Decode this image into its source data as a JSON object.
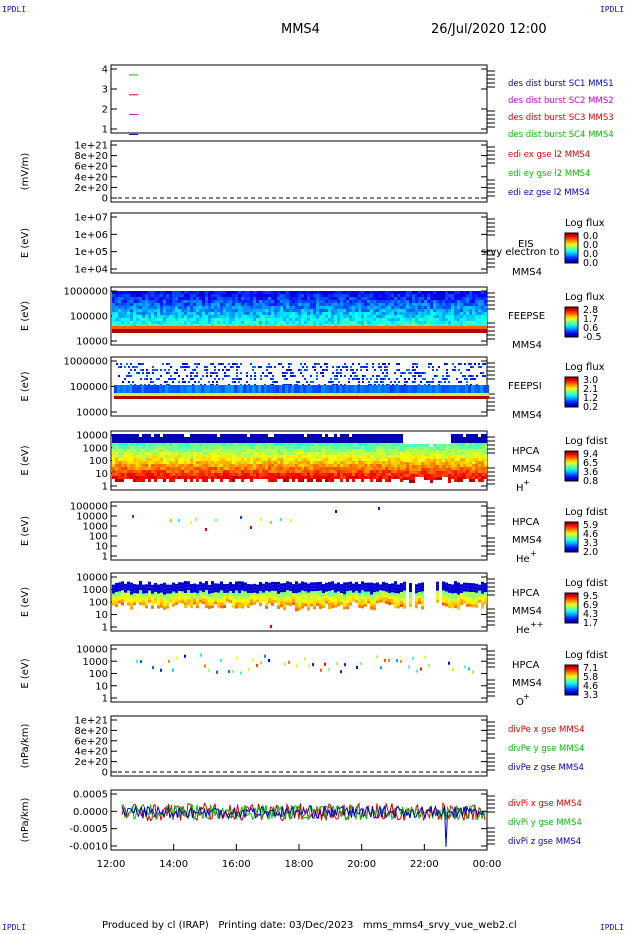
{
  "corners": {
    "tl": "IPDLI",
    "tr": "IPDLI",
    "bl": "IPDLI",
    "br": "IPDLI"
  },
  "header": {
    "spacecraft": "MMS4",
    "datetime": "26/Jul/2020 12:00"
  },
  "footer": {
    "text": "Produced by cl (IRAP)   Printing date: 03/Dec/2023   mms_mms4_srvy_vue_web2.cl"
  },
  "time_axis": {
    "ticks": [
      "12:00",
      "14:00",
      "16:00",
      "18:00",
      "20:00",
      "22:00",
      "00:00"
    ],
    "range_hours": [
      12,
      24
    ]
  },
  "colors": {
    "red": "#e00000",
    "green": "#00c000",
    "magenta": "#d000d0",
    "blue": "#0000c0",
    "black": "#000000"
  },
  "chart_data": [
    {
      "id": "burst",
      "type": "line",
      "ylabel": "",
      "yticks": [
        "4",
        "3",
        "2",
        "1"
      ],
      "legend": [
        {
          "text": "des dist burst SC1 MMS1",
          "color": "#0000c0"
        },
        {
          "text": "des dist burst SC2 MMS2",
          "color": "#d000d0"
        },
        {
          "text": "des dist burst SC3 MMS3",
          "color": "#e00000"
        },
        {
          "text": "des dist burst SC4 MMS4",
          "color": "#00c000"
        }
      ]
    },
    {
      "id": "edi",
      "type": "line",
      "ylabel": "(mV/m)",
      "yticks": [
        "1e+21",
        "8e+20",
        "6e+20",
        "4e+20",
        "2e+20",
        "0"
      ],
      "legend": [
        {
          "text": "edi ex gse l2 MMS4",
          "color": "#e00000"
        },
        {
          "text": "edi ey gse l2 MMS4",
          "color": "#00c000"
        },
        {
          "text": "edi ez gse l2 MMS4",
          "color": "#0000c0"
        }
      ]
    },
    {
      "id": "eis",
      "type": "heatmap",
      "ylabel": "E (eV)",
      "yticks": [
        "1e+07",
        "1e+06",
        "1e+05",
        "1e+04"
      ],
      "labels": [
        "EIS",
        "srvy electron to",
        "MMS4"
      ],
      "cbar_title": "Log flux",
      "cbar_ticks": [
        "0.0",
        "0.0",
        "0.0",
        "0.0"
      ]
    },
    {
      "id": "feepse",
      "type": "heatmap",
      "ylabel": "E (eV)",
      "yticks": [
        "1000000",
        "100000",
        "10000"
      ],
      "labels": [
        "FEEPSE",
        "MMS4"
      ],
      "cbar_title": "Log flux",
      "cbar_ticks": [
        "2.8",
        "1.7",
        "0.6",
        "-0.5"
      ]
    },
    {
      "id": "feepsi",
      "type": "heatmap",
      "ylabel": "E (eV)",
      "yticks": [
        "1000000",
        "100000",
        "10000"
      ],
      "labels": [
        "FEEPSI",
        "MMS4"
      ],
      "cbar_title": "Log flux",
      "cbar_ticks": [
        "3.0",
        "2.1",
        "1.2",
        "0.2"
      ]
    },
    {
      "id": "hpca_h",
      "type": "heatmap",
      "ylabel": "E (eV)",
      "yticks": [
        "10000",
        "1000",
        "100",
        "10",
        "1"
      ],
      "labels": [
        "HPCA",
        "MMS4",
        "H+"
      ],
      "cbar_title": "Log fdist",
      "cbar_ticks": [
        "9.4",
        "6.5",
        "3.6",
        "0.8"
      ]
    },
    {
      "id": "hpca_he",
      "type": "heatmap",
      "ylabel": "E (eV)",
      "yticks": [
        "100000",
        "10000",
        "1000",
        "100",
        "10",
        "1"
      ],
      "labels": [
        "HPCA",
        "MMS4",
        "He+"
      ],
      "cbar_title": "Log fdist",
      "cbar_ticks": [
        "5.9",
        "4.6",
        "3.3",
        "2.0"
      ]
    },
    {
      "id": "hpca_hepp",
      "type": "heatmap",
      "ylabel": "E (eV)",
      "yticks": [
        "10000",
        "1000",
        "100",
        "10",
        "1"
      ],
      "labels": [
        "HPCA",
        "MMS4",
        "He++"
      ],
      "cbar_title": "Log fdist",
      "cbar_ticks": [
        "9.5",
        "6.9",
        "4.3",
        "1.7"
      ]
    },
    {
      "id": "hpca_o",
      "type": "heatmap",
      "ylabel": "E (eV)",
      "yticks": [
        "10000",
        "1000",
        "100",
        "10",
        "1"
      ],
      "labels": [
        "HPCA",
        "MMS4",
        "O+"
      ],
      "cbar_title": "Log fdist",
      "cbar_ticks": [
        "7.1",
        "5.8",
        "4.6",
        "3.3"
      ]
    },
    {
      "id": "divpe",
      "type": "line",
      "ylabel": "(nPa/km)",
      "yticks": [
        "1e+21",
        "8e+20",
        "6e+20",
        "4e+20",
        "2e+20",
        "0"
      ],
      "legend": [
        {
          "text": "divPe x gse MMS4",
          "color": "#e00000"
        },
        {
          "text": "divPe y gse MMS4",
          "color": "#00c000"
        },
        {
          "text": "divPe z gse MMS4",
          "color": "#0000c0"
        }
      ]
    },
    {
      "id": "divpi",
      "type": "line",
      "ylabel": "(nPa/km)",
      "yticks": [
        "0.0005",
        "0.0000",
        "-0.0005",
        "-0.0010"
      ],
      "ylim": [
        -0.0012,
        0.0007
      ],
      "legend": [
        {
          "text": "divPi x gse MMS4",
          "color": "#e00000"
        },
        {
          "text": "divPi y gse MMS4",
          "color": "#00c000"
        },
        {
          "text": "divPi z gse MMS4",
          "color": "#0000c0"
        }
      ]
    }
  ]
}
